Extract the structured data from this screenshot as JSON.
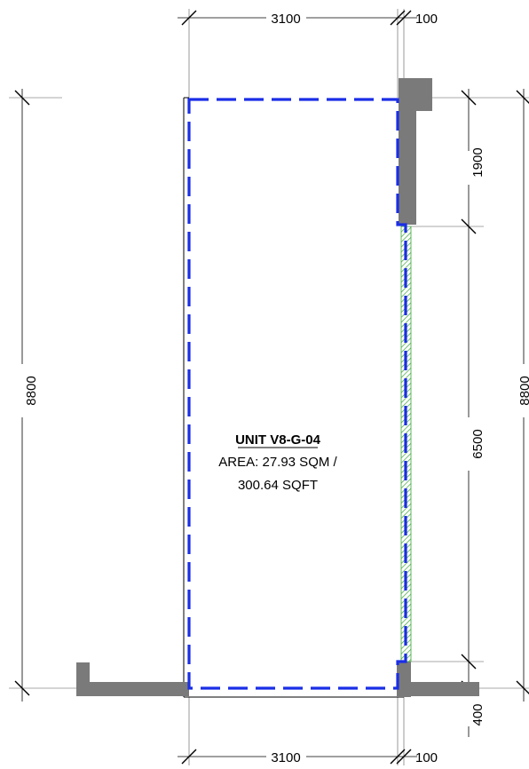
{
  "unit": {
    "name": "UNIT V8-G-04",
    "area_line1": "AREA: 27.93 SQM /",
    "area_line2": "300.64 SQFT"
  },
  "dimensions": {
    "top_width": "3100",
    "top_wall": "100",
    "bottom_width": "3100",
    "bottom_wall": "100",
    "left_height": "8800",
    "right_height": "8800",
    "right_upper": "1900",
    "right_middle": "6500",
    "right_lower": "400"
  },
  "colors": {
    "boundary": "#1a2ee6",
    "glazing": "#3aa63a",
    "wall": "#7a7a7a"
  }
}
